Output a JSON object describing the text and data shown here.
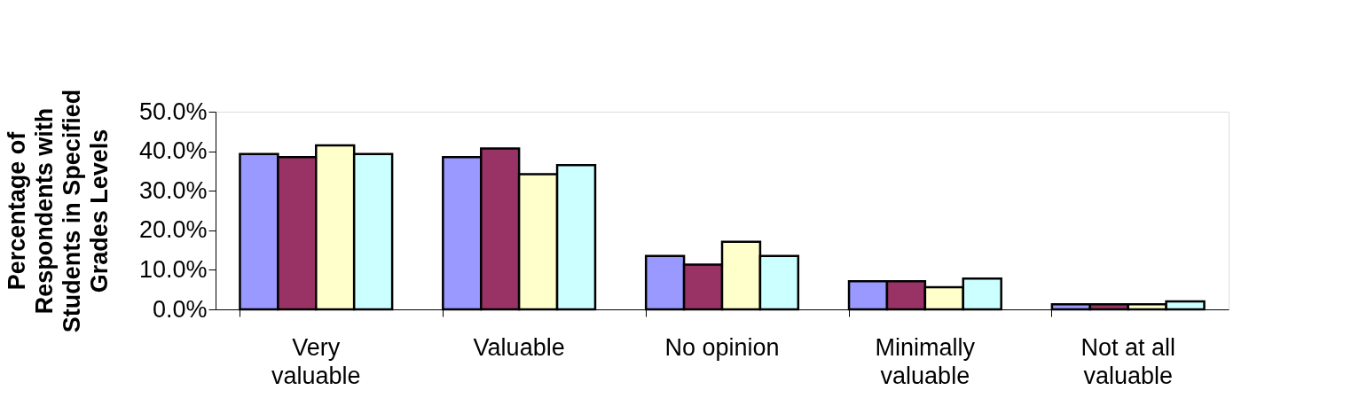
{
  "chart_data": {
    "type": "bar",
    "ylabel": "Percentage of Respondents with Students in Specified Grades Levels",
    "categories": [
      "Very valuable",
      "Valuable",
      "No opinion",
      "Minimally valuable",
      "Not at all valuable"
    ],
    "series": [
      {
        "color": "#9999ff",
        "values": [
          39.3,
          38.5,
          13.5,
          7.1,
          1.3
        ]
      },
      {
        "color": "#993366",
        "values": [
          38.5,
          40.7,
          11.3,
          7.1,
          1.3
        ]
      },
      {
        "color": "#ffffcc",
        "values": [
          41.5,
          34.2,
          17.1,
          5.6,
          1.3
        ]
      },
      {
        "color": "#ccffff",
        "values": [
          39.3,
          36.5,
          13.5,
          7.8,
          2.0
        ]
      }
    ],
    "ylim": [
      0,
      50
    ],
    "yticks": [
      {
        "value": 0,
        "label": "0.0%"
      },
      {
        "value": 10,
        "label": "10.0%"
      },
      {
        "value": 20,
        "label": "20.0%"
      },
      {
        "value": 30,
        "label": "30.0%"
      },
      {
        "value": 40,
        "label": "40.0%"
      },
      {
        "value": 50,
        "label": "50.0%"
      }
    ],
    "grid": false,
    "legend": false
  }
}
